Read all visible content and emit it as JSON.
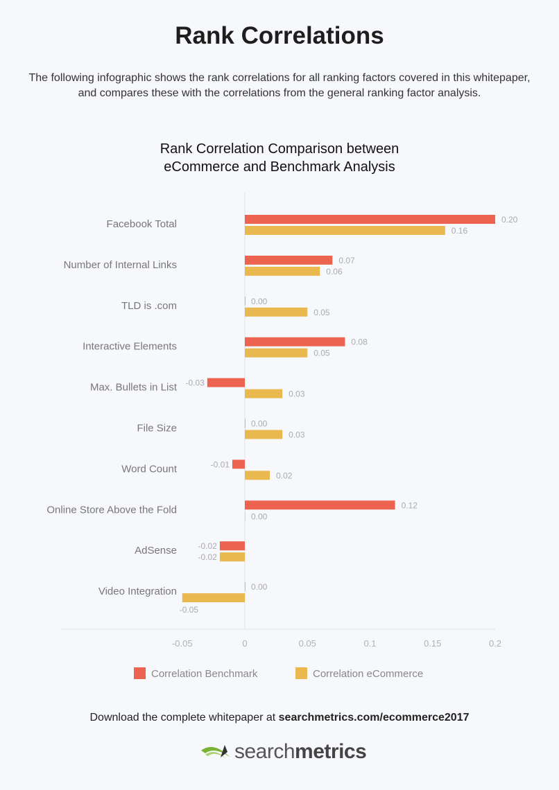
{
  "header": {
    "title": "Rank Correlations",
    "intro_line1": "The following infographic shows the rank correlations for all ranking factors covered in this whitepaper,",
    "intro_line2": "and compares these with the correlations from the general ranking factor analysis."
  },
  "chart_data": {
    "type": "bar",
    "orientation": "horizontal",
    "title_line1": "Rank Correlation Comparison between",
    "title_line2": "eCommerce and Benchmark Analysis",
    "categories": [
      "Facebook Total",
      "Number of Internal Links",
      "TLD is .com",
      "Interactive Elements",
      "Max. Bullets in List",
      "File Size",
      "Word Count",
      "Online Store Above the Fold",
      "AdSense",
      "Video Integration"
    ],
    "series": [
      {
        "name": "Correlation Benchmark",
        "color": "#ec6450",
        "values": [
          0.2,
          0.07,
          0.0,
          0.08,
          -0.03,
          0.0,
          -0.01,
          0.12,
          -0.02,
          0.0
        ],
        "labels": [
          "0.20",
          "0.07",
          "0.00",
          "0.08",
          "-0.03",
          "0.00",
          "-0.01",
          "0.12",
          "-0.02",
          "0.00"
        ]
      },
      {
        "name": "Correlation eCommerce",
        "color": "#e9b84f",
        "values": [
          0.16,
          0.06,
          0.05,
          0.05,
          0.03,
          0.03,
          0.02,
          0.0,
          -0.02,
          -0.05
        ],
        "labels": [
          "0.16",
          "0.06",
          "0.05",
          "0.05",
          "0.03",
          "0.03",
          "0.02",
          "0.00",
          "-0.02",
          "-0.05"
        ]
      }
    ],
    "xlim": [
      -0.05,
      0.2
    ],
    "xticks": [
      "-0.05",
      "0",
      "0.05",
      "0.1",
      "0.15",
      "0.2"
    ],
    "xtick_values": [
      -0.05,
      0,
      0.05,
      0.1,
      0.15,
      0.2
    ],
    "grid": false,
    "legend": "bottom"
  },
  "footer": {
    "text": "Download the complete whitepaper at ",
    "link": "searchmetrics.com/ecommerce2017"
  },
  "logo": {
    "light": "search",
    "bold": "metrics"
  }
}
